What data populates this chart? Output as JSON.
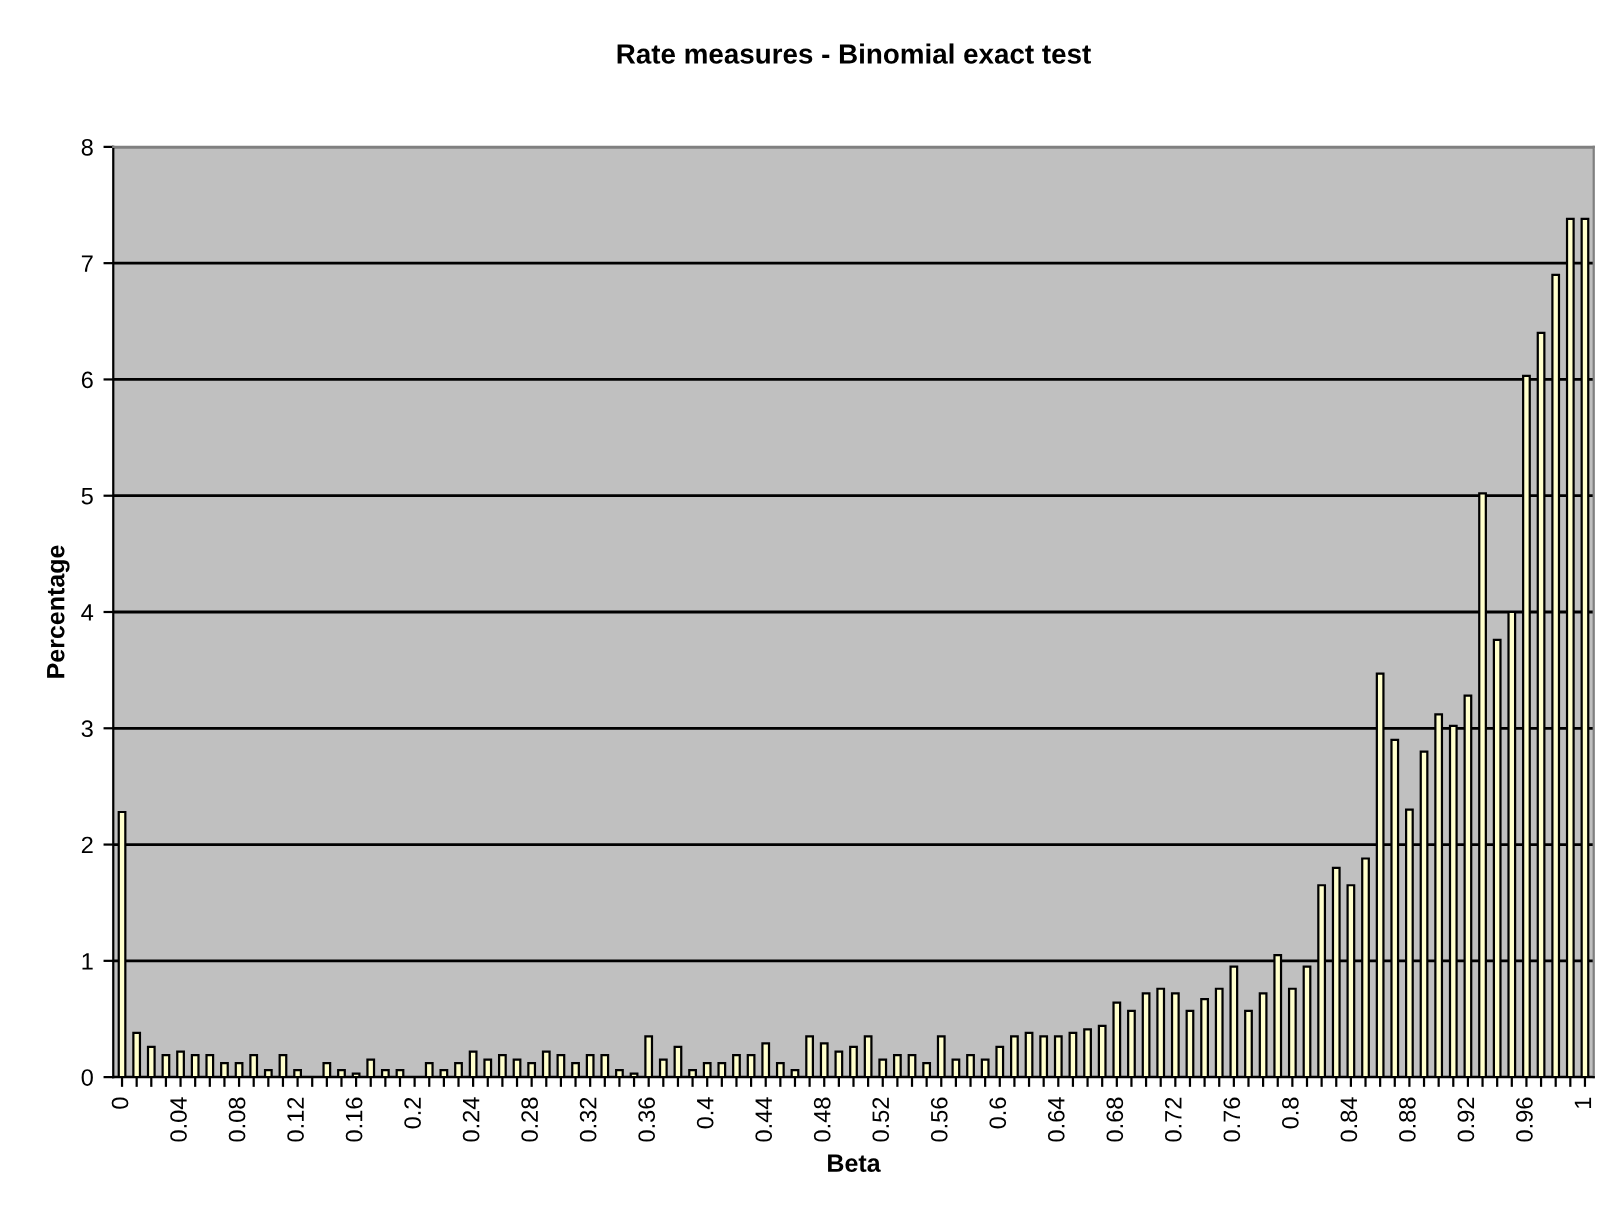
{
  "chart_data": {
    "type": "bar",
    "title": "Rate measures - Binomial exact test",
    "xlabel": "Beta",
    "ylabel": "Percentage",
    "categories": [
      "0",
      null,
      null,
      null,
      "0.04",
      null,
      null,
      null,
      "0.08",
      null,
      null,
      null,
      "0.12",
      null,
      null,
      null,
      "0.16",
      null,
      null,
      null,
      "0.2",
      null,
      null,
      null,
      "0.24",
      null,
      null,
      null,
      "0.28",
      null,
      null,
      null,
      "0.32",
      null,
      null,
      null,
      "0.36",
      null,
      null,
      null,
      "0.4",
      null,
      null,
      null,
      "0.44",
      null,
      null,
      null,
      "0.48",
      null,
      null,
      null,
      "0.52",
      null,
      null,
      null,
      "0.56",
      null,
      null,
      null,
      "0.6",
      null,
      null,
      null,
      "0.64",
      null,
      null,
      null,
      "0.68",
      null,
      null,
      null,
      "0.72",
      null,
      null,
      null,
      "0.76",
      null,
      null,
      null,
      "0.8",
      null,
      null,
      null,
      "0.84",
      null,
      null,
      null,
      "0.88",
      null,
      null,
      null,
      "0.92",
      null,
      null,
      null,
      "0.96",
      null,
      null,
      null,
      "1"
    ],
    "values": [
      2.28,
      0.38,
      0.26,
      0.19,
      0.22,
      0.19,
      0.19,
      0.12,
      0.12,
      0.19,
      0.06,
      0.19,
      0.06,
      null,
      0.12,
      0.06,
      0.03,
      0.15,
      0.06,
      0.06,
      null,
      0.12,
      0.06,
      0.12,
      0.22,
      0.15,
      0.19,
      0.15,
      0.12,
      0.22,
      0.19,
      0.12,
      0.19,
      0.19,
      0.06,
      0.03,
      0.35,
      0.15,
      0.26,
      0.06,
      0.12,
      0.12,
      0.19,
      0.19,
      0.29,
      0.12,
      0.06,
      0.35,
      0.29,
      0.22,
      0.26,
      0.35,
      0.15,
      0.19,
      0.19,
      0.12,
      0.35,
      0.15,
      0.19,
      0.15,
      0.26,
      0.35,
      0.38,
      0.35,
      0.35,
      0.38,
      0.41,
      0.44,
      0.64,
      0.57,
      0.72,
      0.76,
      0.72,
      0.57,
      0.67,
      0.76,
      0.95,
      0.57,
      0.72,
      1.05,
      0.76,
      0.95,
      1.65,
      1.8,
      1.65,
      1.88,
      3.47,
      2.9,
      2.3,
      2.8,
      3.12,
      3.02,
      3.28,
      5.02,
      3.76,
      4.0,
      6.03,
      6.4,
      6.9,
      7.38,
      7.38
    ],
    "color": "#ffffcc",
    "ylim": [
      0,
      8
    ],
    "yticks": [
      0,
      1,
      2,
      3,
      4,
      5,
      6,
      7,
      8
    ],
    "grid": "y",
    "legend": false
  }
}
